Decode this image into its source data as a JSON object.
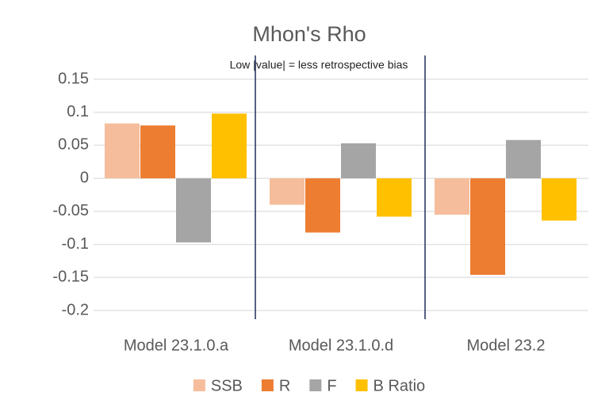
{
  "chart_data": {
    "type": "bar",
    "title": "Mhon's Rho",
    "annotation": "Low |value| = less retrospective bias",
    "categories": [
      "Model 23.1.0.a",
      "Model 23.1.0.d",
      "Model 23.2"
    ],
    "series": [
      {
        "name": "SSB",
        "color": "#f6bd9c",
        "values": [
          0.083,
          -0.04,
          -0.055
        ]
      },
      {
        "name": "R",
        "color": "#ed7d31",
        "values": [
          0.08,
          -0.082,
          -0.146
        ]
      },
      {
        "name": "F",
        "color": "#a5a5a5",
        "values": [
          -0.097,
          0.053,
          0.058
        ]
      },
      {
        "name": "B Ratio",
        "color": "#ffc000",
        "values": [
          0.098,
          -0.058,
          -0.064
        ]
      }
    ],
    "ylim": [
      -0.2,
      0.15
    ],
    "yticks": [
      0.15,
      0.1,
      0.05,
      0,
      -0.05,
      -0.1,
      -0.15,
      -0.2
    ],
    "grid": true,
    "legend": "bottom"
  }
}
